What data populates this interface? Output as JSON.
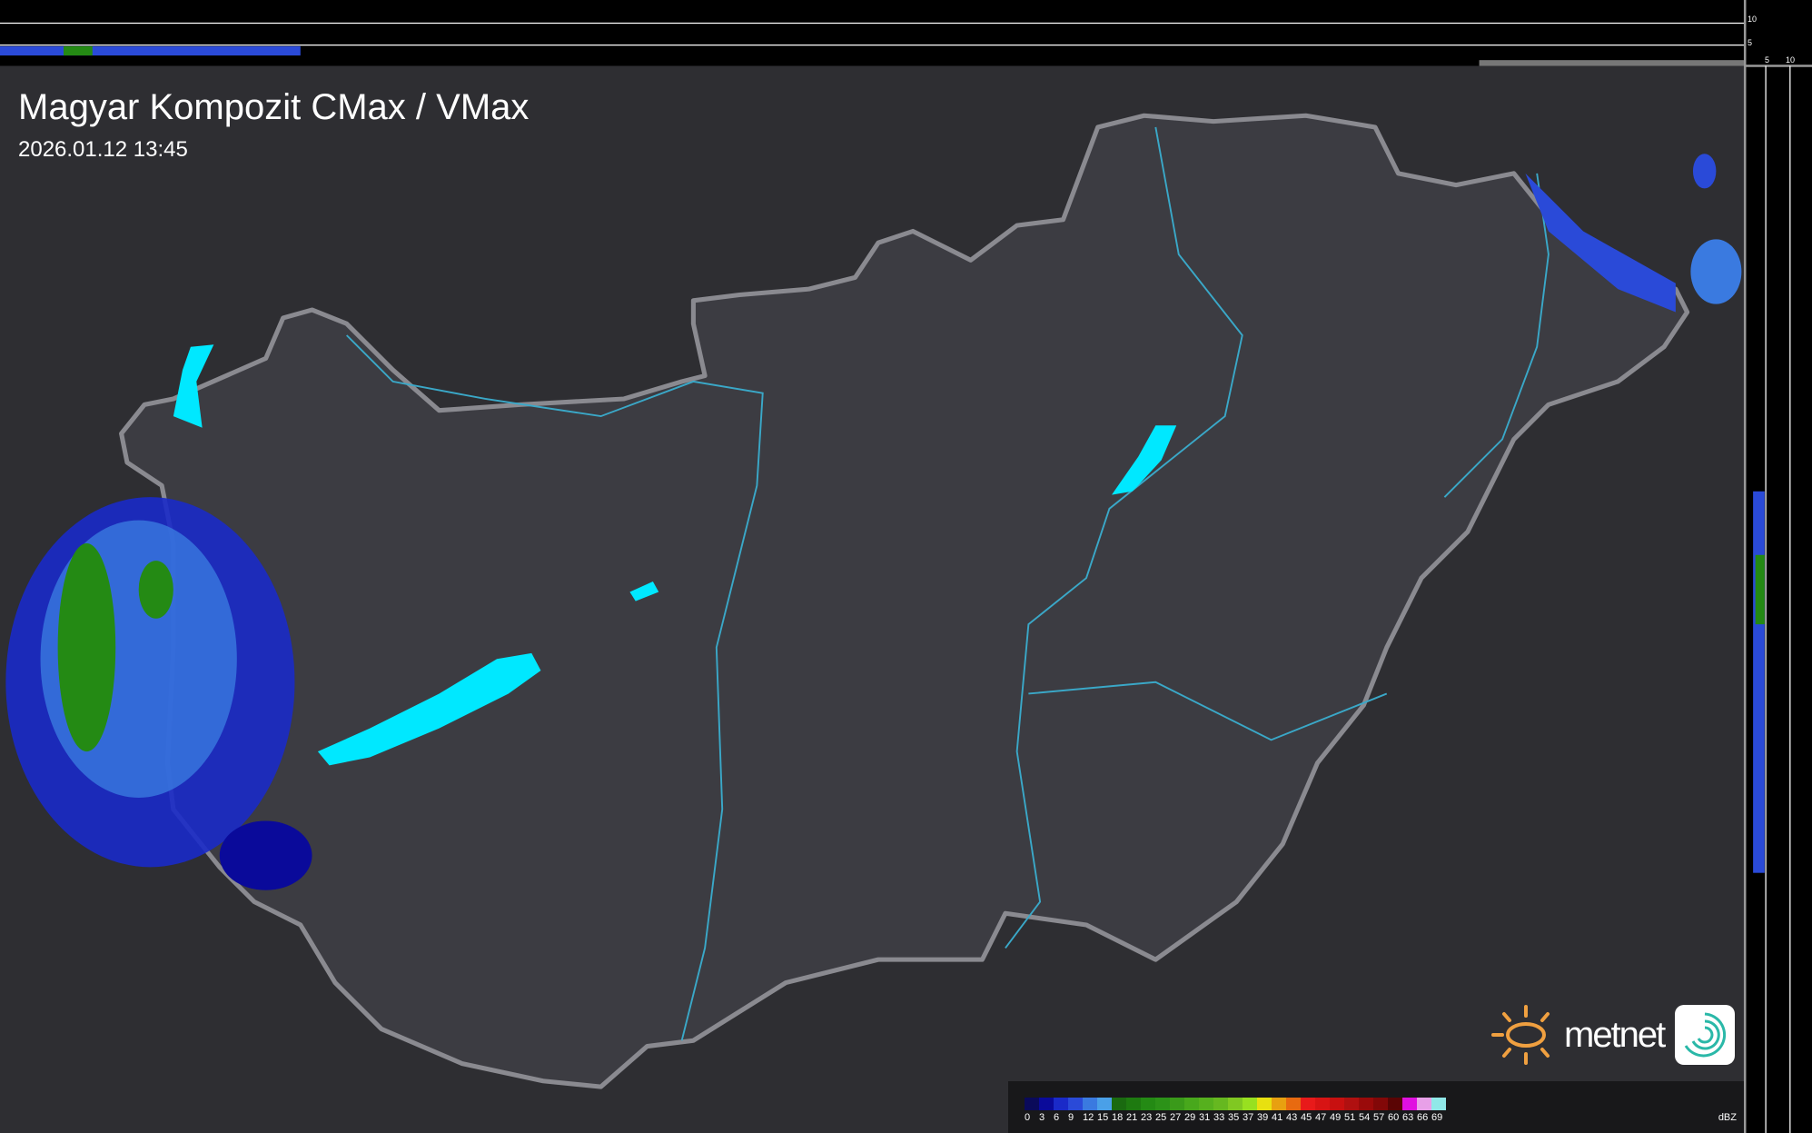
{
  "header": {
    "title": "Magyar Kompozit CMax / VMax",
    "timestamp": "2026.01.12 13:45"
  },
  "profile_axes": {
    "vertical_ticks": [
      "10",
      "5"
    ],
    "horizontal_ticks": [
      "5",
      "10"
    ]
  },
  "legend": {
    "unit": "dBZ",
    "items": [
      {
        "label": "0",
        "color": "#0a0a5a"
      },
      {
        "label": "3",
        "color": "#0a0a9a"
      },
      {
        "label": "6",
        "color": "#1a2ac8"
      },
      {
        "label": "9",
        "color": "#2a4ad8"
      },
      {
        "label": "12",
        "color": "#3a7ae0"
      },
      {
        "label": "15",
        "color": "#4aa0e8"
      },
      {
        "label": "18",
        "color": "#1a6a10"
      },
      {
        "label": "21",
        "color": "#1e7a10"
      },
      {
        "label": "23",
        "color": "#248a14"
      },
      {
        "label": "25",
        "color": "#2c9218"
      },
      {
        "label": "27",
        "color": "#3a9a1a"
      },
      {
        "label": "29",
        "color": "#48a81c"
      },
      {
        "label": "31",
        "color": "#56b01e"
      },
      {
        "label": "33",
        "color": "#66b820"
      },
      {
        "label": "35",
        "color": "#80c822"
      },
      {
        "label": "37",
        "color": "#98e020"
      },
      {
        "label": "39",
        "color": "#e8e010"
      },
      {
        "label": "41",
        "color": "#e8a010"
      },
      {
        "label": "43",
        "color": "#e86a10"
      },
      {
        "label": "45",
        "color": "#e81a1a"
      },
      {
        "label": "47",
        "color": "#d81414"
      },
      {
        "label": "49",
        "color": "#c81010"
      },
      {
        "label": "51",
        "color": "#b01010"
      },
      {
        "label": "54",
        "color": "#9a0a0a"
      },
      {
        "label": "57",
        "color": "#820808"
      },
      {
        "label": "60",
        "color": "#5a0404"
      },
      {
        "label": "63",
        "color": "#e010e0"
      },
      {
        "label": "66",
        "color": "#e8a0e8"
      },
      {
        "label": "69",
        "color": "#90e8e8"
      }
    ]
  },
  "logo": {
    "text": "metnet"
  },
  "colors": {
    "background": "#2e2e32",
    "country": "#3c3c42",
    "border": "#8a8a90",
    "river": "#3aa8c8",
    "lake": "#00e8ff"
  }
}
